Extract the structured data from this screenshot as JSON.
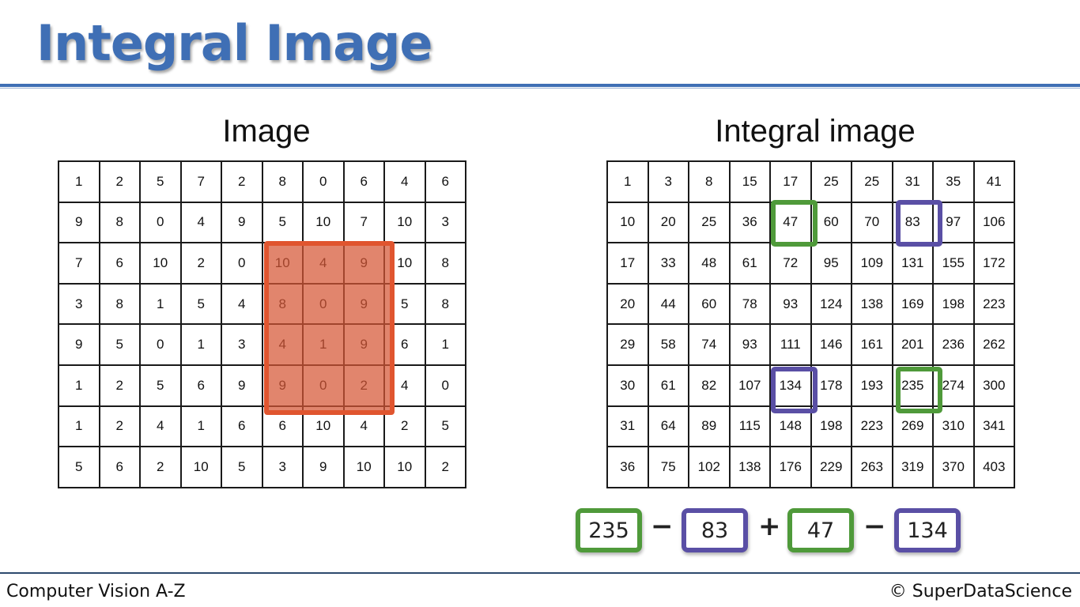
{
  "title": "Integral Image",
  "left_grid": {
    "heading": "Image",
    "rows": [
      [
        1,
        2,
        5,
        7,
        2,
        8,
        0,
        6,
        4,
        6
      ],
      [
        9,
        8,
        0,
        4,
        9,
        5,
        10,
        7,
        10,
        3
      ],
      [
        7,
        6,
        10,
        2,
        0,
        10,
        4,
        9,
        10,
        8
      ],
      [
        3,
        8,
        1,
        5,
        4,
        8,
        0,
        9,
        5,
        8
      ],
      [
        9,
        5,
        0,
        1,
        3,
        4,
        1,
        9,
        6,
        1
      ],
      [
        1,
        2,
        5,
        6,
        9,
        9,
        0,
        2,
        4,
        0
      ],
      [
        1,
        2,
        4,
        1,
        6,
        6,
        10,
        4,
        2,
        5
      ],
      [
        5,
        6,
        2,
        10,
        5,
        3,
        9,
        10,
        10,
        2
      ]
    ],
    "highlight": {
      "color": "#e0552f"
    }
  },
  "right_grid": {
    "heading": "Integral image",
    "rows": [
      [
        1,
        3,
        8,
        15,
        17,
        25,
        25,
        31,
        35,
        41
      ],
      [
        10,
        20,
        25,
        36,
        47,
        60,
        70,
        83,
        97,
        106
      ],
      [
        17,
        33,
        48,
        61,
        72,
        95,
        109,
        131,
        155,
        172
      ],
      [
        20,
        44,
        60,
        78,
        93,
        124,
        138,
        169,
        198,
        223
      ],
      [
        29,
        58,
        74,
        93,
        111,
        146,
        161,
        201,
        236,
        262
      ],
      [
        30,
        61,
        82,
        107,
        134,
        178,
        193,
        235,
        274,
        300
      ],
      [
        31,
        64,
        89,
        115,
        148,
        198,
        223,
        269,
        310,
        341
      ],
      [
        36,
        75,
        102,
        138,
        176,
        229,
        263,
        319,
        370,
        403
      ]
    ],
    "colors": {
      "green": "#4f9a3a",
      "purple": "#5a4fa5"
    }
  },
  "equation": {
    "term1": "235",
    "op1": "−",
    "term2": "83",
    "op2": "+",
    "term3": "47",
    "op3": "−",
    "term4": "134"
  },
  "footer": {
    "left": "Computer Vision A-Z",
    "right": "© SuperDataScience"
  }
}
